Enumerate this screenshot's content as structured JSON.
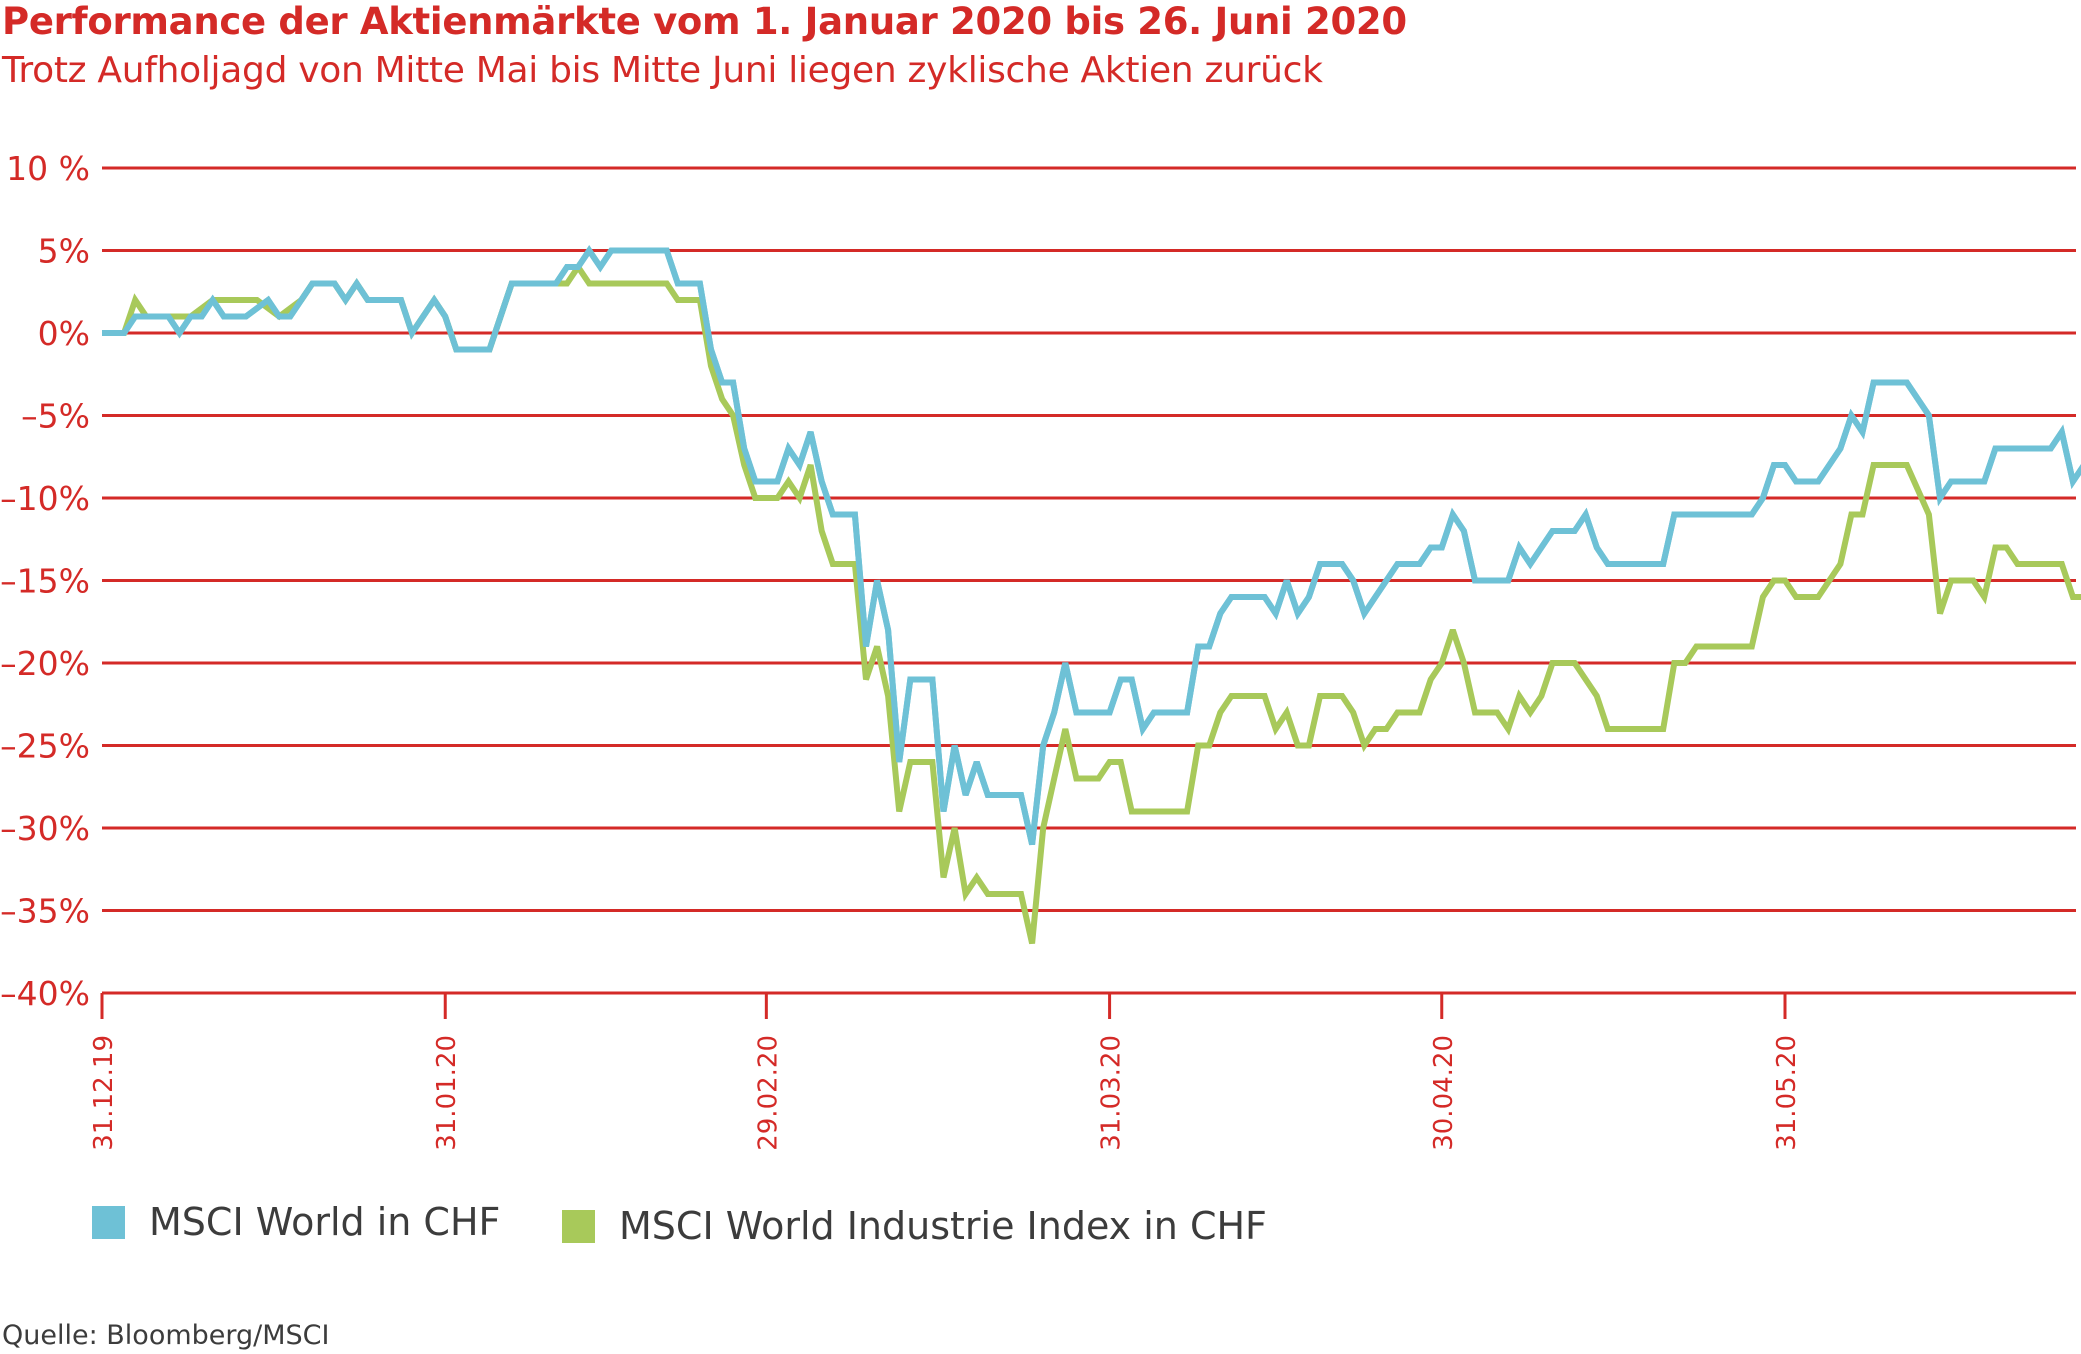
{
  "title": "Performance der Aktienmärkte vom 1. Januar 2020 bis 26. Juni 2020",
  "subtitle": "Trotz Aufholjagd von Mitte Mai bis Mitte Juni liegen zyklische Aktien zurück",
  "source": "Quelle: Bloomberg/MSCI",
  "colors": {
    "accent": "#d42a27",
    "msci_world": "#6ec1d6",
    "msci_industrie": "#a8c95a"
  },
  "chart_data": {
    "type": "line",
    "ylim": [
      -40,
      10
    ],
    "y_ticks": [
      10,
      5,
      0,
      -5,
      -10,
      -15,
      -20,
      -25,
      -30,
      -35,
      -40
    ],
    "y_tick_labels": [
      "10 %",
      "5%",
      "0%",
      "–5%",
      "–10%",
      "–15%",
      "–20%",
      "–25%",
      "–30%",
      "–35%",
      "–40%"
    ],
    "x_ticks": [
      {
        "label": "31.12.19",
        "date": "2019-12-31"
      },
      {
        "label": "31.01.20",
        "date": "2020-01-31"
      },
      {
        "label": "29.02.20",
        "date": "2020-02-29"
      },
      {
        "label": "31.03.20",
        "date": "2020-03-31"
      },
      {
        "label": "30.04.20",
        "date": "2020-04-30"
      },
      {
        "label": "31.05.20",
        "date": "2020-05-31"
      }
    ],
    "xlim": [
      "2019-12-31",
      "2020-06-26"
    ],
    "grid": true,
    "legend_position": "bottom",
    "series": [
      {
        "name": "MSCI World in CHF",
        "color": "#6ec1d6",
        "points": [
          [
            "2019-12-31",
            0
          ],
          [
            "2020-01-02",
            0
          ],
          [
            "2020-01-03",
            1
          ],
          [
            "2020-01-06",
            1
          ],
          [
            "2020-01-07",
            0
          ],
          [
            "2020-01-08",
            1
          ],
          [
            "2020-01-09",
            1
          ],
          [
            "2020-01-10",
            2
          ],
          [
            "2020-01-11",
            1
          ],
          [
            "2020-01-13",
            1
          ],
          [
            "2020-01-15",
            2
          ],
          [
            "2020-01-16",
            1
          ],
          [
            "2020-01-17",
            1
          ],
          [
            "2020-01-18",
            2
          ],
          [
            "2020-01-19",
            3
          ],
          [
            "2020-01-21",
            3
          ],
          [
            "2020-01-22",
            2
          ],
          [
            "2020-01-23",
            3
          ],
          [
            "2020-01-24",
            2
          ],
          [
            "2020-01-27",
            2
          ],
          [
            "2020-01-28",
            0
          ],
          [
            "2020-01-30",
            2
          ],
          [
            "2020-01-31",
            1
          ],
          [
            "2020-02-01",
            -1
          ],
          [
            "2020-02-04",
            -1
          ],
          [
            "2020-02-05",
            1
          ],
          [
            "2020-02-06",
            3
          ],
          [
            "2020-02-10",
            3
          ],
          [
            "2020-02-11",
            4
          ],
          [
            "2020-02-12",
            4
          ],
          [
            "2020-02-13",
            5
          ],
          [
            "2020-02-14",
            4
          ],
          [
            "2020-02-15",
            5
          ],
          [
            "2020-02-20",
            5
          ],
          [
            "2020-02-21",
            3
          ],
          [
            "2020-02-23",
            3
          ],
          [
            "2020-02-24",
            -1
          ],
          [
            "2020-02-25",
            -3
          ],
          [
            "2020-02-26",
            -3
          ],
          [
            "2020-02-27",
            -7
          ],
          [
            "2020-02-28",
            -9
          ],
          [
            "2020-03-01",
            -9
          ],
          [
            "2020-03-02",
            -7
          ],
          [
            "2020-03-03",
            -8
          ],
          [
            "2020-03-04",
            -6
          ],
          [
            "2020-03-05",
            -9
          ],
          [
            "2020-03-06",
            -11
          ],
          [
            "2020-03-08",
            -11
          ],
          [
            "2020-03-09",
            -19
          ],
          [
            "2020-03-10",
            -15
          ],
          [
            "2020-03-11",
            -18
          ],
          [
            "2020-03-12",
            -26
          ],
          [
            "2020-03-13",
            -21
          ],
          [
            "2020-03-15",
            -21
          ],
          [
            "2020-03-16",
            -29
          ],
          [
            "2020-03-17",
            -25
          ],
          [
            "2020-03-18",
            -28
          ],
          [
            "2020-03-19",
            -26
          ],
          [
            "2020-03-20",
            -28
          ],
          [
            "2020-03-23",
            -28
          ],
          [
            "2020-03-24",
            -31
          ],
          [
            "2020-03-25",
            -25
          ],
          [
            "2020-03-26",
            -23
          ],
          [
            "2020-03-27",
            -20
          ],
          [
            "2020-03-28",
            -23
          ],
          [
            "2020-03-31",
            -23
          ],
          [
            "2020-04-01",
            -21
          ],
          [
            "2020-04-02",
            -21
          ],
          [
            "2020-04-03",
            -24
          ],
          [
            "2020-04-04",
            -23
          ],
          [
            "2020-04-07",
            -23
          ],
          [
            "2020-04-08",
            -19
          ],
          [
            "2020-04-09",
            -19
          ],
          [
            "2020-04-10",
            -17
          ],
          [
            "2020-04-11",
            -16
          ],
          [
            "2020-04-14",
            -16
          ],
          [
            "2020-04-15",
            -17
          ],
          [
            "2020-04-16",
            -15
          ],
          [
            "2020-04-17",
            -17
          ],
          [
            "2020-04-18",
            -16
          ],
          [
            "2020-04-19",
            -14
          ],
          [
            "2020-04-21",
            -14
          ],
          [
            "2020-04-22",
            -15
          ],
          [
            "2020-04-23",
            -17
          ],
          [
            "2020-04-24",
            -16
          ],
          [
            "2020-04-25",
            -15
          ],
          [
            "2020-04-26",
            -14
          ],
          [
            "2020-04-28",
            -14
          ],
          [
            "2020-04-29",
            -13
          ],
          [
            "2020-04-30",
            -13
          ],
          [
            "2020-05-01",
            -11
          ],
          [
            "2020-05-02",
            -12
          ],
          [
            "2020-05-03",
            -15
          ],
          [
            "2020-05-06",
            -15
          ],
          [
            "2020-05-07",
            -13
          ],
          [
            "2020-05-08",
            -14
          ],
          [
            "2020-05-10",
            -12
          ],
          [
            "2020-05-12",
            -12
          ],
          [
            "2020-05-13",
            -11
          ],
          [
            "2020-05-14",
            -13
          ],
          [
            "2020-05-15",
            -14
          ],
          [
            "2020-05-20",
            -14
          ],
          [
            "2020-05-21",
            -11
          ],
          [
            "2020-05-28",
            -11
          ],
          [
            "2020-05-29",
            -10
          ],
          [
            "2020-05-30",
            -8
          ],
          [
            "2020-05-31",
            -8
          ],
          [
            "2020-06-01",
            -9
          ],
          [
            "2020-06-03",
            -9
          ],
          [
            "2020-06-05",
            -7
          ],
          [
            "2020-06-06",
            -5
          ],
          [
            "2020-06-07",
            -6
          ],
          [
            "2020-06-08",
            -3
          ],
          [
            "2020-06-11",
            -3
          ],
          [
            "2020-06-13",
            -5
          ],
          [
            "2020-06-14",
            -10
          ],
          [
            "2020-06-15",
            -9
          ],
          [
            "2020-06-18",
            -9
          ],
          [
            "2020-06-19",
            -7
          ],
          [
            "2020-06-24",
            -7
          ],
          [
            "2020-06-25",
            -6
          ],
          [
            "2020-06-26",
            -9
          ],
          [
            "2020-06-27",
            -8
          ],
          [
            "2020-06-28",
            -10
          ]
        ]
      },
      {
        "name": "MSCI World Industrie Index in CHF",
        "color": "#a8c95a",
        "points": [
          [
            "2019-12-31",
            0
          ],
          [
            "2020-01-02",
            0
          ],
          [
            "2020-01-03",
            2
          ],
          [
            "2020-01-04",
            1
          ],
          [
            "2020-01-06",
            1
          ],
          [
            "2020-01-08",
            1
          ],
          [
            "2020-01-10",
            2
          ],
          [
            "2020-01-14",
            2
          ],
          [
            "2020-01-16",
            1
          ],
          [
            "2020-01-18",
            2
          ],
          [
            "2020-01-19",
            3
          ],
          [
            "2020-01-21",
            3
          ],
          [
            "2020-01-22",
            2
          ],
          [
            "2020-01-23",
            3
          ],
          [
            "2020-01-24",
            2
          ],
          [
            "2020-01-27",
            2
          ],
          [
            "2020-01-28",
            0
          ],
          [
            "2020-01-30",
            2
          ],
          [
            "2020-01-31",
            1
          ],
          [
            "2020-02-01",
            -1
          ],
          [
            "2020-02-04",
            -1
          ],
          [
            "2020-02-05",
            1
          ],
          [
            "2020-02-06",
            3
          ],
          [
            "2020-02-09",
            3
          ],
          [
            "2020-02-10",
            3
          ],
          [
            "2020-02-11",
            3
          ],
          [
            "2020-02-12",
            4
          ],
          [
            "2020-02-13",
            3
          ],
          [
            "2020-02-20",
            3
          ],
          [
            "2020-02-21",
            2
          ],
          [
            "2020-02-23",
            2
          ],
          [
            "2020-02-24",
            -2
          ],
          [
            "2020-02-25",
            -4
          ],
          [
            "2020-02-26",
            -5
          ],
          [
            "2020-02-27",
            -8
          ],
          [
            "2020-02-28",
            -10
          ],
          [
            "2020-03-01",
            -10
          ],
          [
            "2020-03-02",
            -9
          ],
          [
            "2020-03-03",
            -10
          ],
          [
            "2020-03-04",
            -8
          ],
          [
            "2020-03-05",
            -12
          ],
          [
            "2020-03-06",
            -14
          ],
          [
            "2020-03-08",
            -14
          ],
          [
            "2020-03-09",
            -21
          ],
          [
            "2020-03-10",
            -19
          ],
          [
            "2020-03-11",
            -22
          ],
          [
            "2020-03-12",
            -29
          ],
          [
            "2020-03-13",
            -26
          ],
          [
            "2020-03-15",
            -26
          ],
          [
            "2020-03-16",
            -33
          ],
          [
            "2020-03-17",
            -30
          ],
          [
            "2020-03-18",
            -34
          ],
          [
            "2020-03-19",
            -33
          ],
          [
            "2020-03-20",
            -34
          ],
          [
            "2020-03-23",
            -34
          ],
          [
            "2020-03-24",
            -37
          ],
          [
            "2020-03-25",
            -30
          ],
          [
            "2020-03-26",
            -27
          ],
          [
            "2020-03-27",
            -24
          ],
          [
            "2020-03-28",
            -27
          ],
          [
            "2020-03-30",
            -27
          ],
          [
            "2020-03-31",
            -26
          ],
          [
            "2020-04-01",
            -26
          ],
          [
            "2020-04-02",
            -29
          ],
          [
            "2020-04-06",
            -29
          ],
          [
            "2020-04-07",
            -29
          ],
          [
            "2020-04-08",
            -25
          ],
          [
            "2020-04-09",
            -25
          ],
          [
            "2020-04-10",
            -23
          ],
          [
            "2020-04-11",
            -22
          ],
          [
            "2020-04-14",
            -22
          ],
          [
            "2020-04-15",
            -24
          ],
          [
            "2020-04-16",
            -23
          ],
          [
            "2020-04-17",
            -25
          ],
          [
            "2020-04-18",
            -25
          ],
          [
            "2020-04-19",
            -22
          ],
          [
            "2020-04-21",
            -22
          ],
          [
            "2020-04-22",
            -23
          ],
          [
            "2020-04-23",
            -25
          ],
          [
            "2020-04-24",
            -24
          ],
          [
            "2020-04-25",
            -24
          ],
          [
            "2020-04-26",
            -23
          ],
          [
            "2020-04-28",
            -23
          ],
          [
            "2020-04-29",
            -21
          ],
          [
            "2020-04-30",
            -20
          ],
          [
            "2020-05-01",
            -18
          ],
          [
            "2020-05-02",
            -20
          ],
          [
            "2020-05-03",
            -23
          ],
          [
            "2020-05-05",
            -23
          ],
          [
            "2020-05-06",
            -24
          ],
          [
            "2020-05-07",
            -22
          ],
          [
            "2020-05-08",
            -23
          ],
          [
            "2020-05-09",
            -22
          ],
          [
            "2020-05-10",
            -20
          ],
          [
            "2020-05-12",
            -20
          ],
          [
            "2020-05-14",
            -22
          ],
          [
            "2020-05-15",
            -24
          ],
          [
            "2020-05-20",
            -24
          ],
          [
            "2020-05-21",
            -20
          ],
          [
            "2020-05-22",
            -20
          ],
          [
            "2020-05-23",
            -19
          ],
          [
            "2020-05-28",
            -19
          ],
          [
            "2020-05-29",
            -16
          ],
          [
            "2020-05-30",
            -15
          ],
          [
            "2020-05-31",
            -15
          ],
          [
            "2020-06-01",
            -16
          ],
          [
            "2020-06-03",
            -16
          ],
          [
            "2020-06-05",
            -14
          ],
          [
            "2020-06-06",
            -11
          ],
          [
            "2020-06-07",
            -11
          ],
          [
            "2020-06-08",
            -8
          ],
          [
            "2020-06-11",
            -8
          ],
          [
            "2020-06-13",
            -11
          ],
          [
            "2020-06-14",
            -17
          ],
          [
            "2020-06-15",
            -15
          ],
          [
            "2020-06-17",
            -15
          ],
          [
            "2020-06-18",
            -16
          ],
          [
            "2020-06-19",
            -13
          ],
          [
            "2020-06-20",
            -13
          ],
          [
            "2020-06-21",
            -14
          ],
          [
            "2020-06-25",
            -14
          ],
          [
            "2020-06-26",
            -16
          ],
          [
            "2020-06-27",
            -16
          ],
          [
            "2020-06-28",
            -17
          ]
        ]
      }
    ]
  }
}
